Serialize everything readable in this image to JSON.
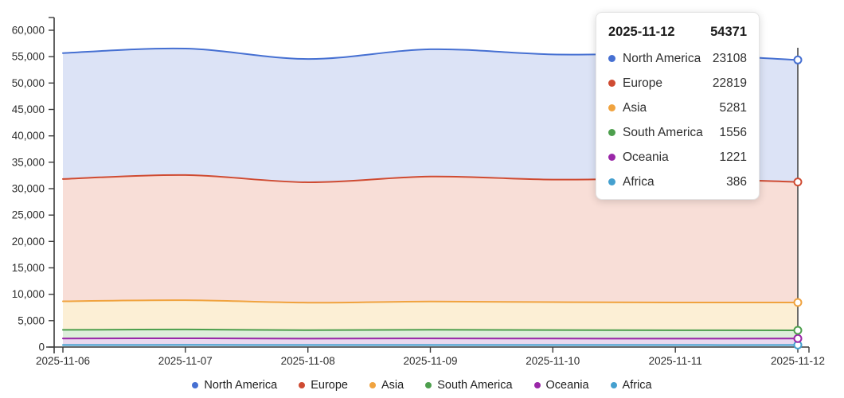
{
  "chart_data": {
    "type": "area",
    "stacked": true,
    "title": "",
    "xlabel": "",
    "ylabel": "",
    "x": [
      "2025-11-06",
      "2025-11-07",
      "2025-11-08",
      "2025-11-09",
      "2025-11-10",
      "2025-11-11",
      "2025-11-12"
    ],
    "series": [
      {
        "name": "Africa",
        "color": "#45a0cf",
        "fill": "#d8e8f4",
        "values": [
          395,
          405,
          385,
          395,
          390,
          385,
          386
        ]
      },
      {
        "name": "Oceania",
        "color": "#9a27a8",
        "fill": "#ead9ef",
        "values": [
          1240,
          1260,
          1220,
          1245,
          1230,
          1220,
          1221
        ]
      },
      {
        "name": "South America",
        "color": "#4d9f4d",
        "fill": "#ddeeda",
        "values": [
          1620,
          1660,
          1590,
          1630,
          1600,
          1580,
          1556
        ]
      },
      {
        "name": "Asia",
        "color": "#f0a33f",
        "fill": "#fcefd5",
        "values": [
          5420,
          5560,
          5210,
          5370,
          5300,
          5260,
          5281
        ]
      },
      {
        "name": "Europe",
        "color": "#cf4b32",
        "fill": "#f8ded7",
        "values": [
          23150,
          23700,
          22800,
          23650,
          23200,
          23450,
          22819
        ]
      },
      {
        "name": "North America",
        "color": "#4670d2",
        "fill": "#dce3f6",
        "values": [
          23850,
          23950,
          23350,
          24100,
          23700,
          23600,
          23108
        ]
      }
    ],
    "stack_order_bottom_to_top": [
      "Africa",
      "Oceania",
      "South America",
      "Asia",
      "Europe",
      "North America"
    ],
    "ylim": [
      0,
      60000
    ],
    "ytick_step": 5000,
    "grid": false,
    "legend_position": "bottom",
    "axis_color": "#3b3b3b",
    "crosshair_x": "2025-11-12"
  },
  "tooltip": {
    "date": "2025-11-12",
    "total": "54371",
    "rows": [
      {
        "name": "North America",
        "value": "23108",
        "color": "#4670d2"
      },
      {
        "name": "Europe",
        "value": "22819",
        "color": "#cf4b32"
      },
      {
        "name": "Asia",
        "value": "5281",
        "color": "#f0a33f"
      },
      {
        "name": "South America",
        "value": "1556",
        "color": "#4d9f4d"
      },
      {
        "name": "Oceania",
        "value": "1221",
        "color": "#9a27a8"
      },
      {
        "name": "Africa",
        "value": "386",
        "color": "#45a0cf"
      }
    ]
  },
  "legend": {
    "items": [
      {
        "label": "North America",
        "color": "#4670d2"
      },
      {
        "label": "Europe",
        "color": "#cf4b32"
      },
      {
        "label": "Asia",
        "color": "#f0a33f"
      },
      {
        "label": "South America",
        "color": "#4d9f4d"
      },
      {
        "label": "Oceania",
        "color": "#9a27a8"
      },
      {
        "label": "Africa",
        "color": "#45a0cf"
      }
    ]
  }
}
